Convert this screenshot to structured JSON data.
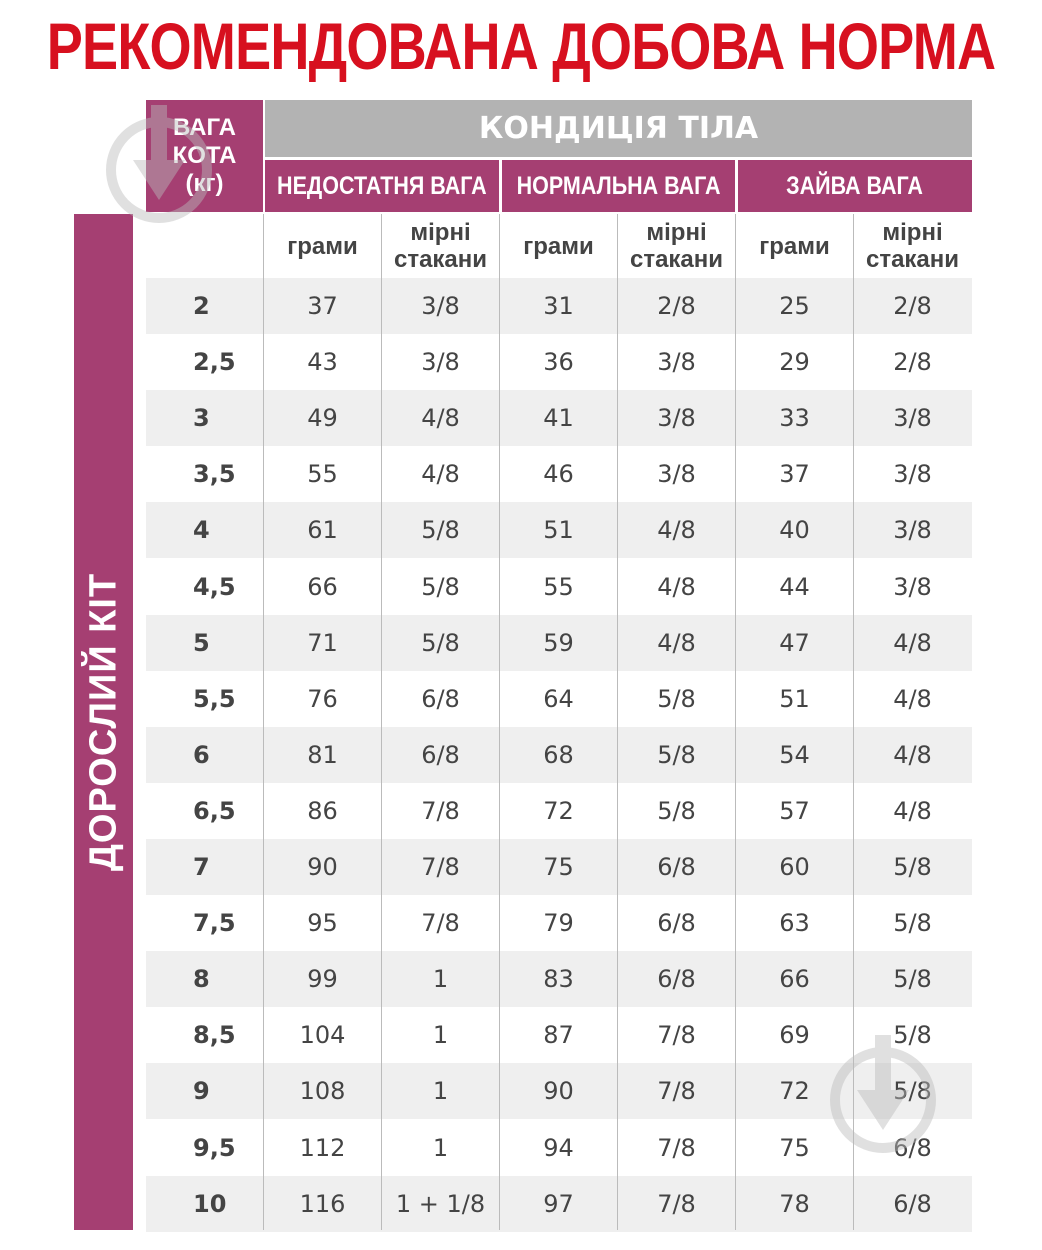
{
  "title": "РЕКОМЕНДОВАНА ДОБОВА НОРМА",
  "header": {
    "weight_label": [
      "ВАГА",
      "КОТА",
      "(кг)"
    ],
    "body_condition": "КОНДИЦІЯ ТІЛА",
    "groups": [
      "НЕДОСТАТНЯ ВАГА",
      "НОРМАЛЬНА ВАГА",
      "ЗАЙВА ВАГА"
    ],
    "units": [
      "грами",
      "мірні стакани",
      "грами",
      "мірні стакани",
      "грами",
      "мірні стакани"
    ]
  },
  "side_label": "ДОРОСЛИЙ КІТ",
  "rows": [
    [
      "2",
      "37",
      "3/8",
      "31",
      "2/8",
      "25",
      "2/8"
    ],
    [
      "2,5",
      "43",
      "3/8",
      "36",
      "3/8",
      "29",
      "2/8"
    ],
    [
      "3",
      "49",
      "4/8",
      "41",
      "3/8",
      "33",
      "3/8"
    ],
    [
      "3,5",
      "55",
      "4/8",
      "46",
      "3/8",
      "37",
      "3/8"
    ],
    [
      "4",
      "61",
      "5/8",
      "51",
      "4/8",
      "40",
      "3/8"
    ],
    [
      "4,5",
      "66",
      "5/8",
      "55",
      "4/8",
      "44",
      "3/8"
    ],
    [
      "5",
      "71",
      "5/8",
      "59",
      "4/8",
      "47",
      "4/8"
    ],
    [
      "5,5",
      "76",
      "6/8",
      "64",
      "5/8",
      "51",
      "4/8"
    ],
    [
      "6",
      "81",
      "6/8",
      "68",
      "5/8",
      "54",
      "4/8"
    ],
    [
      "6,5",
      "86",
      "7/8",
      "72",
      "5/8",
      "57",
      "4/8"
    ],
    [
      "7",
      "90",
      "7/8",
      "75",
      "6/8",
      "60",
      "5/8"
    ],
    [
      "7,5",
      "95",
      "7/8",
      "79",
      "6/8",
      "63",
      "5/8"
    ],
    [
      "8",
      "99",
      "1",
      "83",
      "6/8",
      "66",
      "5/8"
    ],
    [
      "8,5",
      "104",
      "1",
      "87",
      "7/8",
      "69",
      "5/8"
    ],
    [
      "9",
      "108",
      "1",
      "90",
      "7/8",
      "72",
      "5/8"
    ],
    [
      "9,5",
      "112",
      "1",
      "94",
      "7/8",
      "75",
      "6/8"
    ],
    [
      "10",
      "116",
      "1 + 1/8",
      "97",
      "7/8",
      "78",
      "6/8"
    ]
  ],
  "colors": {
    "title": "#d7101f",
    "accent": "#a53f72",
    "header_gray": "#b3b3b3",
    "row_alt": "#efefef"
  }
}
